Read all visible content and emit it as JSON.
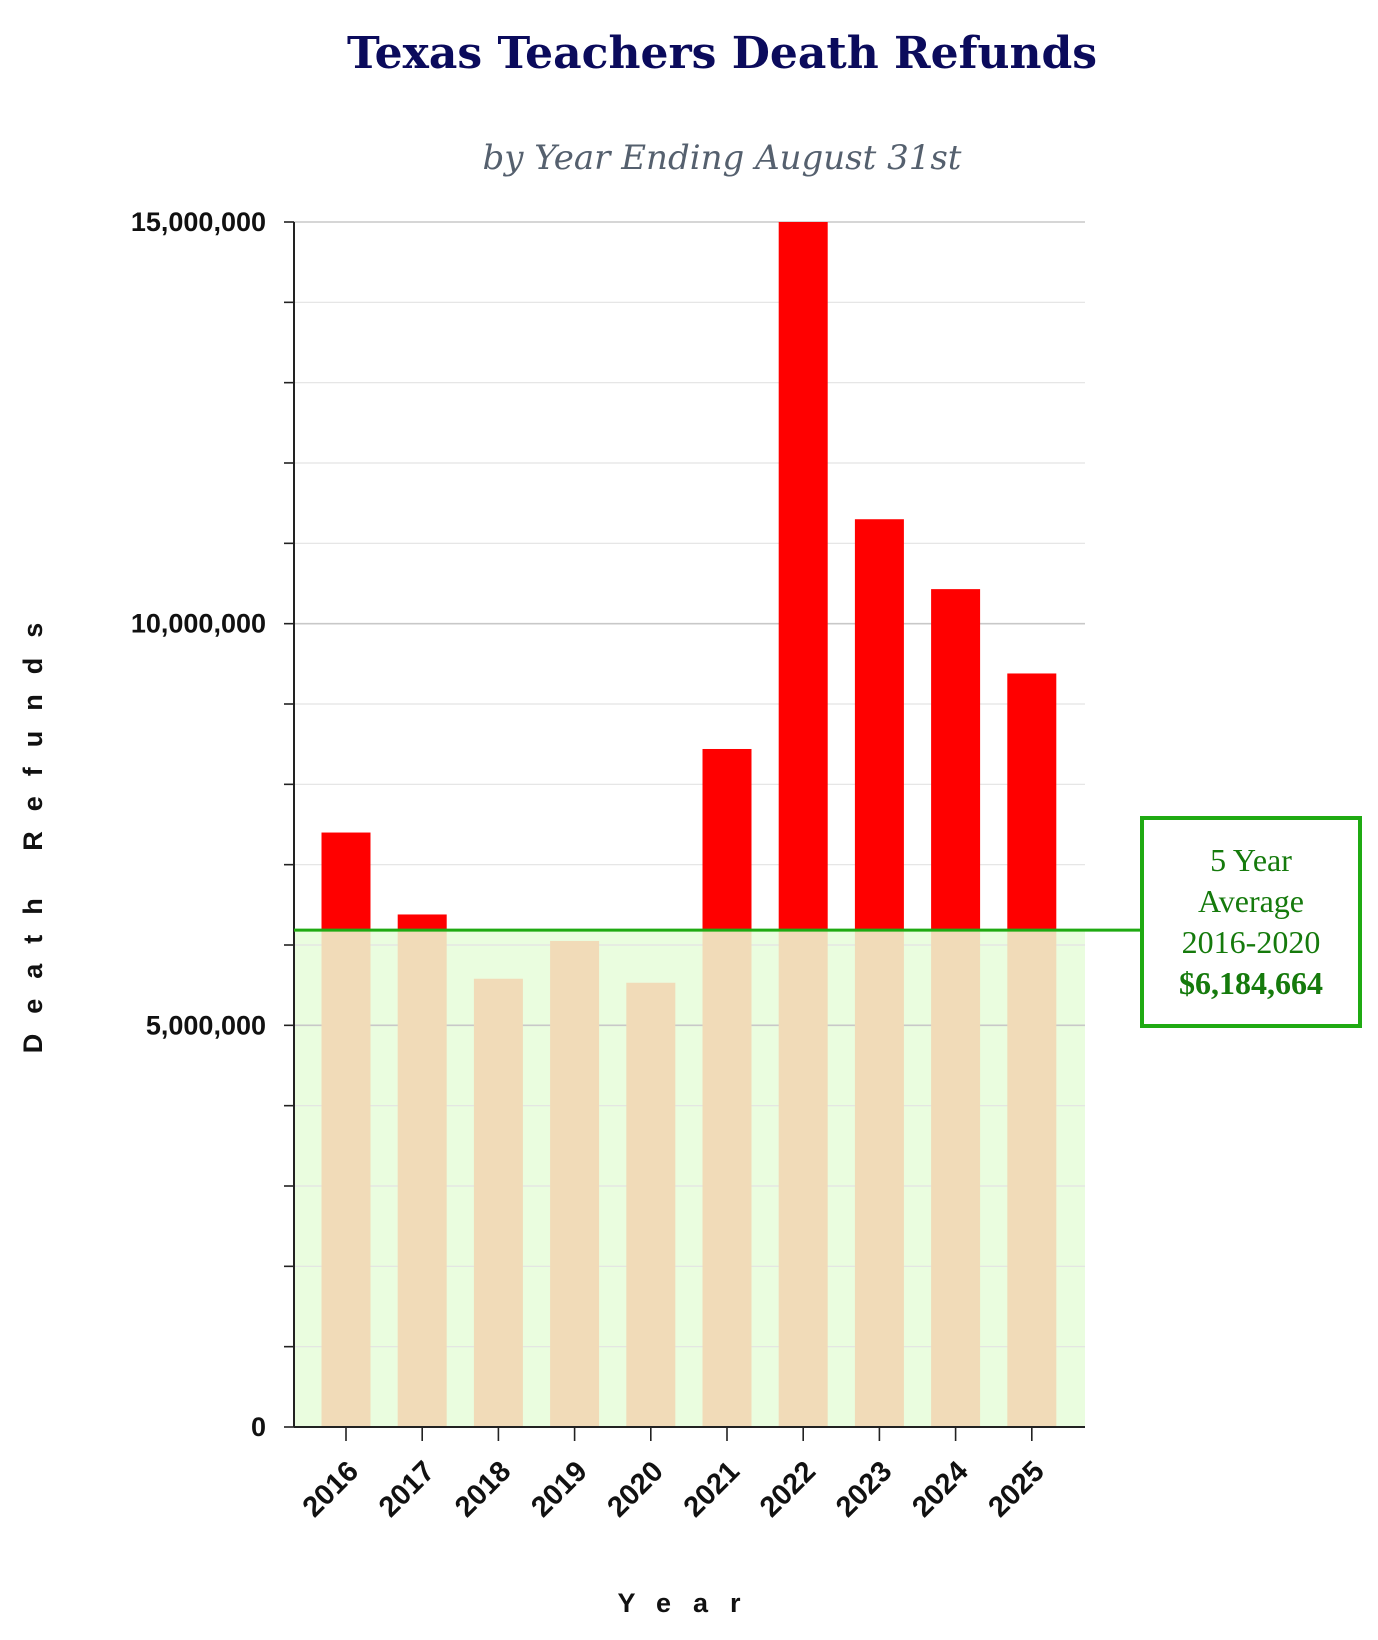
{
  "chart_data": {
    "type": "bar",
    "title": "Texas Teachers Death Refunds",
    "subtitle": "by Year Ending August 31st",
    "xlabel": "Year",
    "ylabel": "Death Refunds",
    "ylim": [
      0,
      15000000
    ],
    "y_major_ticks": [
      0,
      5000000,
      10000000,
      15000000
    ],
    "y_tick_labels": [
      "0",
      "5,000,000",
      "10,000,000",
      "15,000,000"
    ],
    "y_minor_step": 1000000,
    "grid": true,
    "categories": [
      "2016",
      "2017",
      "2018",
      "2019",
      "2020",
      "2021",
      "2022",
      "2023",
      "2024",
      "2025"
    ],
    "values": [
      7400000,
      6380000,
      5580000,
      6050000,
      5530000,
      8440000,
      15000000,
      11300000,
      10430000,
      9380000
    ],
    "reference_line": {
      "value": 6184664,
      "label_lines": [
        "5 Year",
        "Average",
        "2016-2020"
      ],
      "value_label": "$6,184,664"
    },
    "colors": {
      "bar_above": "#ff0000",
      "bar_below": "#f1dbb8",
      "band_fill": "#eafddf",
      "reference_line": "#1faa12",
      "title": "#0b0b5c",
      "subtitle": "#55606e",
      "box_text": "#157a0c"
    }
  }
}
